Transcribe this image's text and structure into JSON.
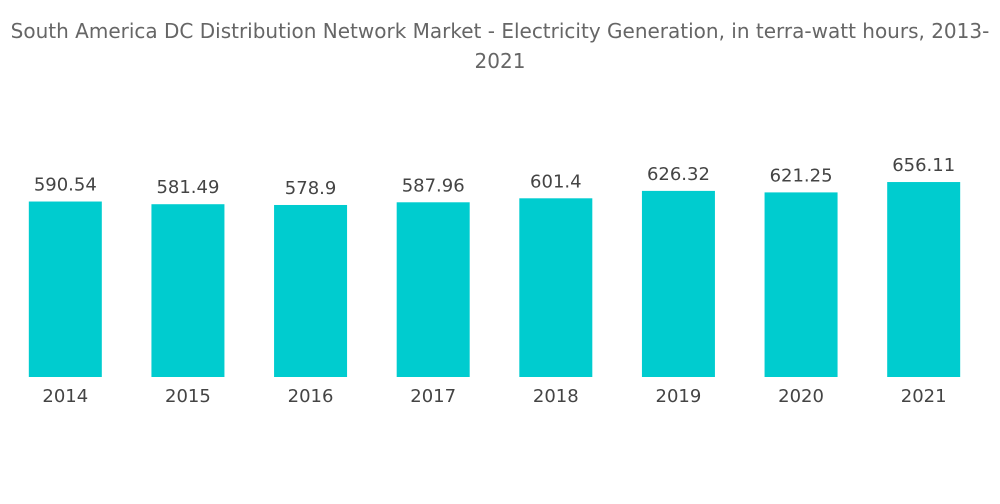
{
  "chart_data": {
    "type": "bar",
    "title": "South America DC Distribution Network Market - Electricity Generation, in terra-watt hours, 2013-2021",
    "categories": [
      "2014",
      "2015",
      "2016",
      "2017",
      "2018",
      "2019",
      "2020",
      "2021"
    ],
    "values": [
      590.54,
      581.49,
      578.9,
      587.96,
      601.4,
      626.32,
      621.25,
      656.11
    ],
    "color": "#00cccf",
    "ylim": [
      0,
      700
    ]
  }
}
